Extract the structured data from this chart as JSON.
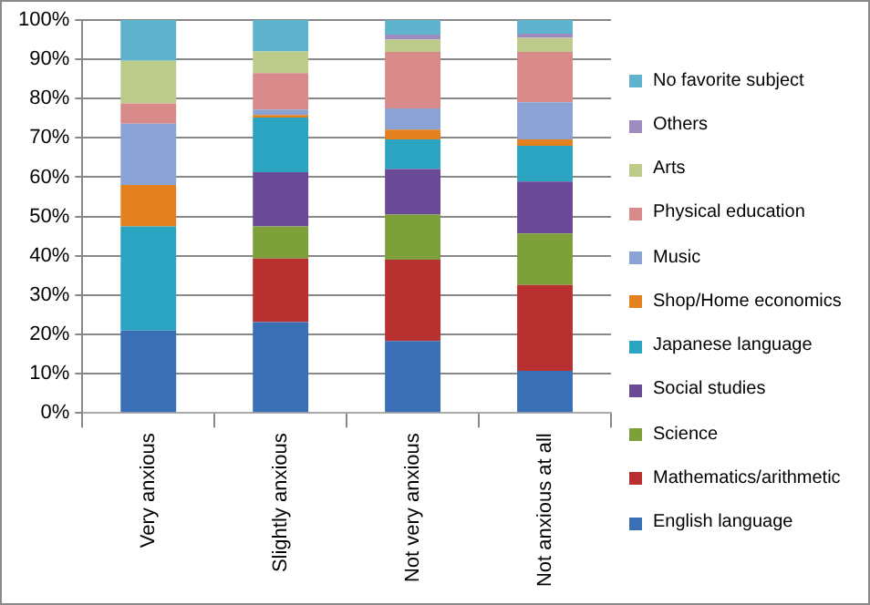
{
  "chart_data": {
    "type": "bar",
    "stacked": true,
    "categories": [
      "Very anxious",
      "Slightly anxious",
      "Not very anxious",
      "Not anxious at all"
    ],
    "series": [
      {
        "name": "English language",
        "color": "#3a6fb5",
        "values": [
          21,
          23.1,
          18.3,
          10.7
        ]
      },
      {
        "name": "Mathematics/arithmetic",
        "color": "#b93030",
        "values": [
          0,
          16.2,
          20.7,
          21.9
        ]
      },
      {
        "name": "Science",
        "color": "#7ea03a",
        "values": [
          0,
          8.2,
          11.5,
          13.1
        ]
      },
      {
        "name": "Social studies",
        "color": "#6a4a96",
        "values": [
          0,
          13.8,
          11.6,
          13.2
        ]
      },
      {
        "name": "Japanese language",
        "color": "#2aa4c0",
        "values": [
          26.5,
          13.9,
          7.5,
          9.1
        ]
      },
      {
        "name": "Shop/Home economics",
        "color": "#e5801f",
        "values": [
          10.5,
          0.6,
          2.5,
          1.6
        ]
      },
      {
        "name": "Music",
        "color": "#8aa3d4",
        "values": [
          15.6,
          1.4,
          5.4,
          9.5
        ]
      },
      {
        "name": "Physical education",
        "color": "#d88a8a",
        "values": [
          5.2,
          9.3,
          14.4,
          12.8
        ]
      },
      {
        "name": "Arts",
        "color": "#bccb8a",
        "values": [
          10.8,
          5.5,
          3.1,
          3.6
        ]
      },
      {
        "name": "Others",
        "color": "#9d8cbd",
        "values": [
          0,
          0,
          1.3,
          1
        ]
      },
      {
        "name": "No favorite subject",
        "color": "#5fb3cc",
        "values": [
          10.4,
          8,
          3.7,
          3.5
        ]
      }
    ],
    "ylim": [
      0,
      100
    ],
    "yticks": [
      {
        "value": 0,
        "label": "0%"
      },
      {
        "value": 10,
        "label": "10%"
      },
      {
        "value": 20,
        "label": "20%"
      },
      {
        "value": 30,
        "label": "30%"
      },
      {
        "value": 40,
        "label": "40%"
      },
      {
        "value": 50,
        "label": "50%"
      },
      {
        "value": 60,
        "label": "60%"
      },
      {
        "value": 70,
        "label": "70%"
      },
      {
        "value": 80,
        "label": "80%"
      },
      {
        "value": 90,
        "label": "90%"
      },
      {
        "value": 100,
        "label": "100%"
      }
    ],
    "grid": "y",
    "legend": "right"
  }
}
